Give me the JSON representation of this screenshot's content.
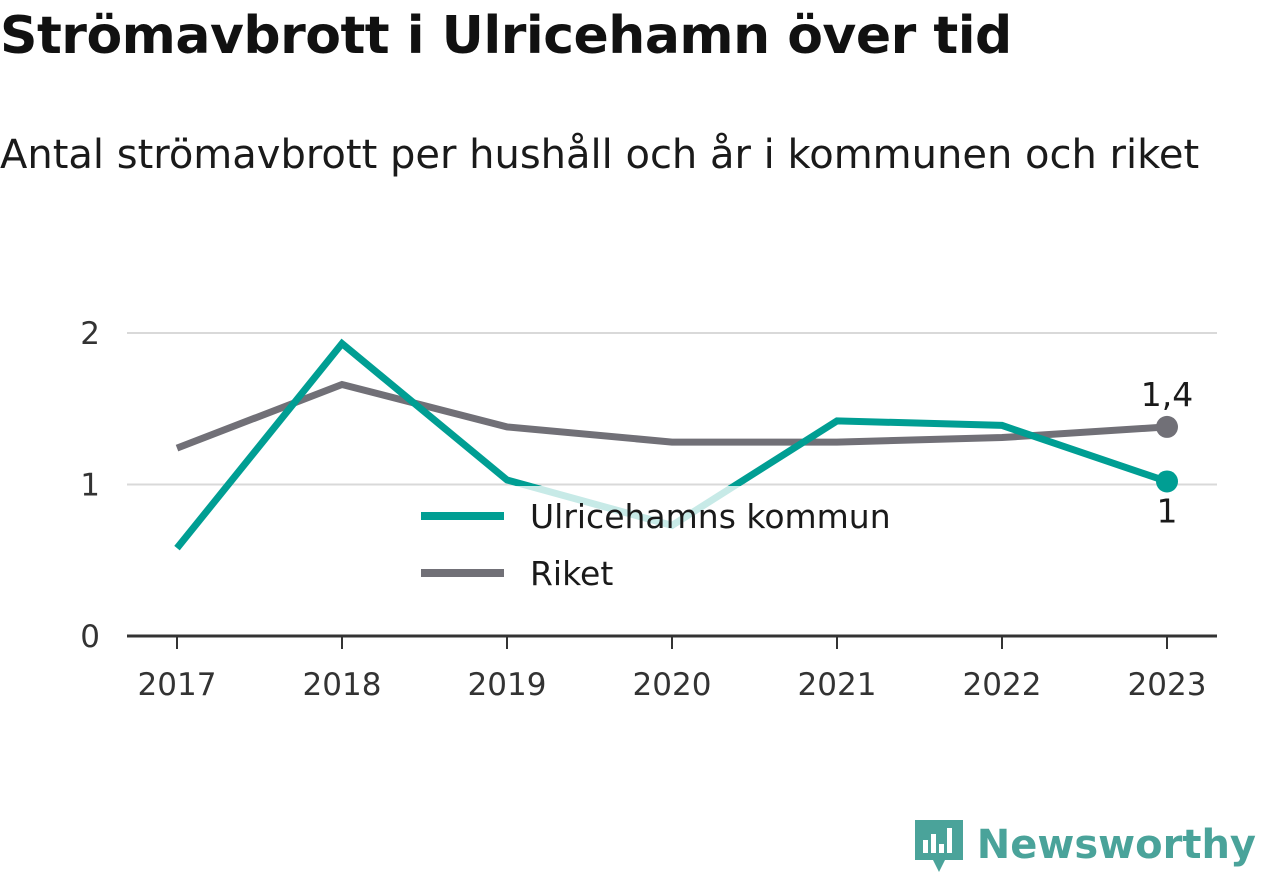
{
  "title": "Strömavbrott i Ulricehamn över tid",
  "subtitle": "Antal strömavbrott per hushåll och år i kommunen och riket",
  "brand": {
    "name": "Newsworthy",
    "color": "#4aa39a"
  },
  "chart_data": {
    "type": "line",
    "title": "Strömavbrott i Ulricehamn över tid",
    "subtitle": "Antal strömavbrott per hushåll och år i kommunen och riket",
    "categories": [
      "2017",
      "2018",
      "2019",
      "2020",
      "2021",
      "2022",
      "2023"
    ],
    "ylim": [
      0,
      2
    ],
    "yticks": [
      0,
      1,
      2
    ],
    "grid": true,
    "legend": "center",
    "series": [
      {
        "name": "Ulricehamns kommun",
        "color": "#009e93",
        "values": [
          0.58,
          1.93,
          1.03,
          0.73,
          1.42,
          1.39,
          1.02
        ],
        "end_label": "1"
      },
      {
        "name": "Riket",
        "color": "#717077",
        "values": [
          1.24,
          1.66,
          1.38,
          1.28,
          1.28,
          1.31,
          1.38
        ],
        "end_label": "1,4"
      }
    ]
  }
}
